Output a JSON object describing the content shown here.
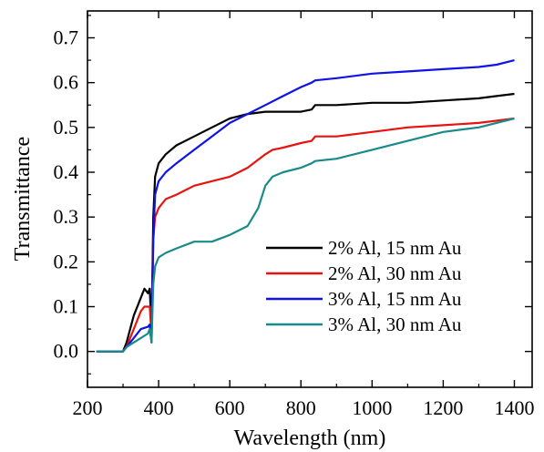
{
  "chart_data": {
    "type": "line",
    "title": "",
    "xlabel": "Wavelength (nm)",
    "ylabel": "Transmittance",
    "xlim": [
      200,
      1450
    ],
    "ylim": [
      -0.08,
      0.76
    ],
    "xticks": [
      200,
      400,
      600,
      800,
      1000,
      1200,
      1400
    ],
    "yticks": [
      0.0,
      0.1,
      0.2,
      0.3,
      0.4,
      0.5,
      0.6,
      0.7
    ],
    "ytick_labels": [
      "0.0",
      "0.1",
      "0.2",
      "0.3",
      "0.4",
      "0.5",
      "0.6",
      "0.7"
    ],
    "grid": false,
    "legend_position": "bottom-right",
    "series": [
      {
        "name": "2% Al, 15 nm Au",
        "color": "#000000",
        "x": [
          225,
          260,
          300,
          310,
          330,
          350,
          360,
          370,
          375,
          380,
          385,
          390,
          400,
          420,
          450,
          500,
          550,
          600,
          650,
          700,
          750,
          800,
          830,
          840,
          900,
          1000,
          1100,
          1200,
          1300,
          1350,
          1400
        ],
        "y": [
          0.0,
          0.0,
          0.0,
          0.02,
          0.08,
          0.12,
          0.14,
          0.13,
          0.14,
          0.05,
          0.3,
          0.39,
          0.42,
          0.44,
          0.46,
          0.48,
          0.5,
          0.52,
          0.53,
          0.535,
          0.535,
          0.535,
          0.54,
          0.55,
          0.55,
          0.555,
          0.555,
          0.56,
          0.565,
          0.57,
          0.575
        ]
      },
      {
        "name": "2% Al, 30 nm Au",
        "color": "#e8130e",
        "x": [
          225,
          260,
          300,
          310,
          330,
          350,
          360,
          370,
          375,
          380,
          385,
          390,
          400,
          420,
          450,
          500,
          550,
          600,
          650,
          700,
          720,
          750,
          800,
          830,
          840,
          900,
          1000,
          1100,
          1200,
          1300,
          1400
        ],
        "y": [
          0.0,
          0.0,
          0.0,
          0.01,
          0.05,
          0.09,
          0.1,
          0.1,
          0.1,
          0.04,
          0.25,
          0.3,
          0.32,
          0.34,
          0.35,
          0.37,
          0.38,
          0.39,
          0.41,
          0.44,
          0.45,
          0.455,
          0.465,
          0.47,
          0.48,
          0.48,
          0.49,
          0.5,
          0.505,
          0.51,
          0.52
        ]
      },
      {
        "name": "3% Al, 15 nm Au",
        "color": "#0f13e6",
        "x": [
          225,
          260,
          300,
          310,
          330,
          350,
          370,
          375,
          380,
          385,
          390,
          400,
          420,
          450,
          500,
          550,
          600,
          650,
          700,
          750,
          800,
          830,
          840,
          900,
          1000,
          1100,
          1200,
          1300,
          1350,
          1400
        ],
        "y": [
          0.0,
          0.0,
          0.0,
          0.01,
          0.03,
          0.05,
          0.055,
          0.06,
          0.02,
          0.25,
          0.35,
          0.38,
          0.4,
          0.42,
          0.45,
          0.48,
          0.51,
          0.53,
          0.55,
          0.57,
          0.59,
          0.6,
          0.605,
          0.61,
          0.62,
          0.625,
          0.63,
          0.635,
          0.64,
          0.65
        ]
      },
      {
        "name": "3% Al, 30 nm Au",
        "color": "#198a8a",
        "x": [
          225,
          260,
          300,
          310,
          330,
          350,
          370,
          375,
          380,
          385,
          390,
          400,
          420,
          450,
          500,
          550,
          600,
          650,
          680,
          700,
          720,
          750,
          800,
          830,
          840,
          900,
          1000,
          1100,
          1200,
          1300,
          1400
        ],
        "y": [
          0.0,
          0.0,
          0.0,
          0.01,
          0.02,
          0.03,
          0.04,
          0.05,
          0.02,
          0.15,
          0.19,
          0.21,
          0.22,
          0.23,
          0.245,
          0.245,
          0.26,
          0.28,
          0.32,
          0.37,
          0.39,
          0.4,
          0.41,
          0.42,
          0.425,
          0.43,
          0.45,
          0.47,
          0.49,
          0.5,
          0.52
        ]
      }
    ]
  }
}
